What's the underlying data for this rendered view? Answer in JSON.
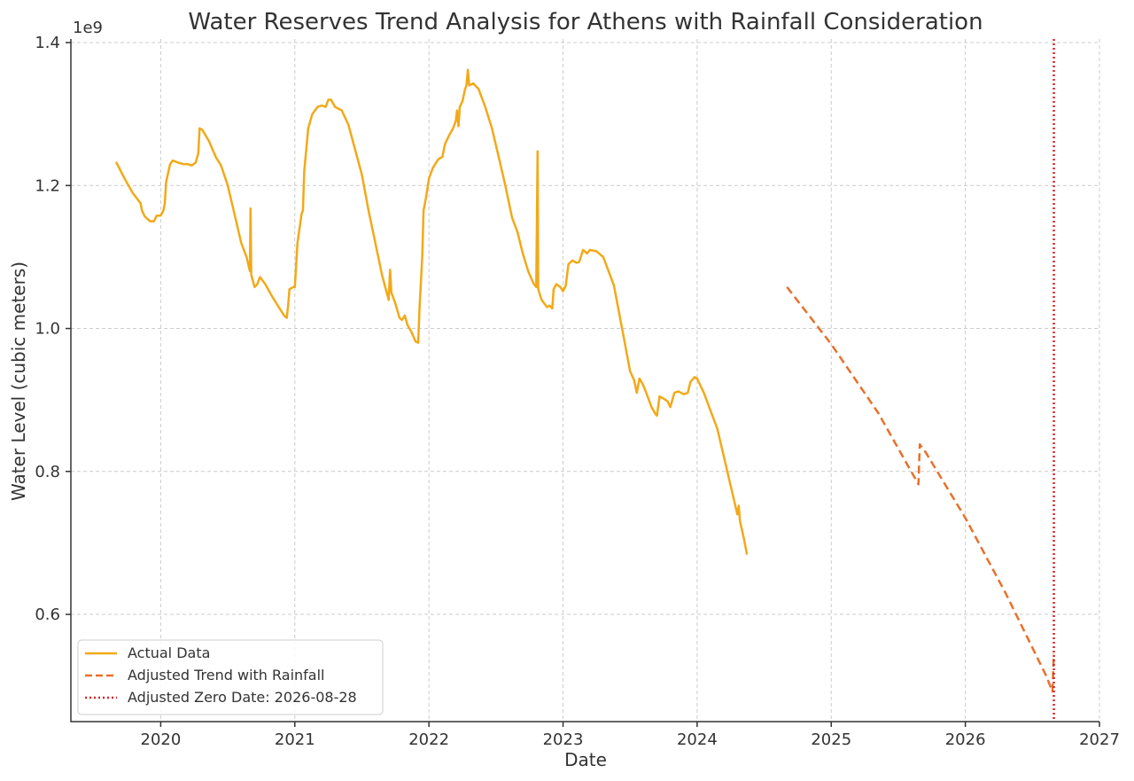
{
  "chart_data": {
    "type": "line",
    "title": "Water Reserves Trend Analysis for Athens with Rainfall Consideration",
    "xlabel": "Date",
    "ylabel": "Water Level (cubic meters)",
    "y_offset_label": "1e9",
    "xlim": [
      2019.33,
      2027.0
    ],
    "ylim": [
      0.45,
      1.405
    ],
    "x_ticks": [
      2020,
      2021,
      2022,
      2023,
      2024,
      2025,
      2026,
      2027
    ],
    "x_tick_labels": [
      "2020",
      "2021",
      "2022",
      "2023",
      "2024",
      "2025",
      "2026",
      "2027"
    ],
    "y_ticks": [
      0.6,
      0.8,
      1.0,
      1.2,
      1.4
    ],
    "y_tick_labels": [
      "0.6",
      "0.8",
      "1.0",
      "1.2",
      "1.4"
    ],
    "grid": true,
    "legend_position": "lower-left",
    "series": [
      {
        "name": "Actual Data",
        "style": "solid",
        "color": "#f2a918",
        "points": [
          [
            2019.67,
            1.232
          ],
          [
            2019.73,
            1.21
          ],
          [
            2019.79,
            1.19
          ],
          [
            2019.83,
            1.18
          ],
          [
            2019.85,
            1.175
          ],
          [
            2019.86,
            1.165
          ],
          [
            2019.88,
            1.157
          ],
          [
            2019.92,
            1.15
          ],
          [
            2019.95,
            1.15
          ],
          [
            2019.97,
            1.158
          ],
          [
            2020.0,
            1.158
          ],
          [
            2020.02,
            1.165
          ],
          [
            2020.03,
            1.175
          ],
          [
            2020.04,
            1.205
          ],
          [
            2020.07,
            1.23
          ],
          [
            2020.09,
            1.235
          ],
          [
            2020.13,
            1.232
          ],
          [
            2020.17,
            1.23
          ],
          [
            2020.2,
            1.23
          ],
          [
            2020.23,
            1.228
          ],
          [
            2020.26,
            1.232
          ],
          [
            2020.28,
            1.245
          ],
          [
            2020.29,
            1.28
          ],
          [
            2020.31,
            1.278
          ],
          [
            2020.36,
            1.262
          ],
          [
            2020.41,
            1.24
          ],
          [
            2020.45,
            1.228
          ],
          [
            2020.5,
            1.2
          ],
          [
            2020.55,
            1.16
          ],
          [
            2020.6,
            1.12
          ],
          [
            2020.64,
            1.1
          ],
          [
            2020.665,
            1.08
          ],
          [
            2020.67,
            1.168
          ],
          [
            2020.675,
            1.075
          ],
          [
            2020.7,
            1.058
          ],
          [
            2020.72,
            1.062
          ],
          [
            2020.74,
            1.072
          ],
          [
            2020.78,
            1.062
          ],
          [
            2020.83,
            1.045
          ],
          [
            2020.88,
            1.03
          ],
          [
            2020.92,
            1.018
          ],
          [
            2020.94,
            1.015
          ],
          [
            2020.95,
            1.032
          ],
          [
            2020.96,
            1.055
          ],
          [
            2020.99,
            1.058
          ],
          [
            2021.0,
            1.058
          ],
          [
            2021.02,
            1.12
          ],
          [
            2021.05,
            1.16
          ],
          [
            2021.06,
            1.165
          ],
          [
            2021.07,
            1.22
          ],
          [
            2021.1,
            1.28
          ],
          [
            2021.13,
            1.3
          ],
          [
            2021.17,
            1.31
          ],
          [
            2021.2,
            1.312
          ],
          [
            2021.23,
            1.31
          ],
          [
            2021.25,
            1.32
          ],
          [
            2021.27,
            1.32
          ],
          [
            2021.3,
            1.31
          ],
          [
            2021.35,
            1.305
          ],
          [
            2021.4,
            1.285
          ],
          [
            2021.45,
            1.25
          ],
          [
            2021.5,
            1.215
          ],
          [
            2021.55,
            1.165
          ],
          [
            2021.6,
            1.12
          ],
          [
            2021.65,
            1.075
          ],
          [
            2021.7,
            1.04
          ],
          [
            2021.71,
            1.082
          ],
          [
            2021.72,
            1.05
          ],
          [
            2021.75,
            1.035
          ],
          [
            2021.78,
            1.015
          ],
          [
            2021.8,
            1.012
          ],
          [
            2021.82,
            1.018
          ],
          [
            2021.84,
            1.005
          ],
          [
            2021.87,
            0.995
          ],
          [
            2021.9,
            0.982
          ],
          [
            2021.92,
            0.98
          ],
          [
            2021.93,
            1.03
          ],
          [
            2021.95,
            1.1
          ],
          [
            2021.96,
            1.165
          ],
          [
            2021.98,
            1.185
          ],
          [
            2022.0,
            1.21
          ],
          [
            2022.03,
            1.225
          ],
          [
            2022.07,
            1.237
          ],
          [
            2022.1,
            1.24
          ],
          [
            2022.12,
            1.258
          ],
          [
            2022.15,
            1.27
          ],
          [
            2022.18,
            1.28
          ],
          [
            2022.2,
            1.29
          ],
          [
            2022.21,
            1.305
          ],
          [
            2022.22,
            1.283
          ],
          [
            2022.23,
            1.31
          ],
          [
            2022.25,
            1.318
          ],
          [
            2022.27,
            1.335
          ],
          [
            2022.28,
            1.34
          ],
          [
            2022.29,
            1.362
          ],
          [
            2022.3,
            1.34
          ],
          [
            2022.33,
            1.343
          ],
          [
            2022.37,
            1.335
          ],
          [
            2022.42,
            1.31
          ],
          [
            2022.47,
            1.28
          ],
          [
            2022.52,
            1.24
          ],
          [
            2022.57,
            1.2
          ],
          [
            2022.62,
            1.155
          ],
          [
            2022.66,
            1.135
          ],
          [
            2022.7,
            1.105
          ],
          [
            2022.74,
            1.08
          ],
          [
            2022.78,
            1.063
          ],
          [
            2022.8,
            1.058
          ],
          [
            2022.81,
            1.248
          ],
          [
            2022.815,
            1.055
          ],
          [
            2022.84,
            1.04
          ],
          [
            2022.88,
            1.03
          ],
          [
            2022.9,
            1.032
          ],
          [
            2022.92,
            1.028
          ],
          [
            2022.93,
            1.055
          ],
          [
            2022.95,
            1.062
          ],
          [
            2022.98,
            1.058
          ],
          [
            2023.0,
            1.052
          ],
          [
            2023.02,
            1.06
          ],
          [
            2023.04,
            1.09
          ],
          [
            2023.07,
            1.095
          ],
          [
            2023.1,
            1.092
          ],
          [
            2023.12,
            1.093
          ],
          [
            2023.15,
            1.11
          ],
          [
            2023.18,
            1.105
          ],
          [
            2023.2,
            1.11
          ],
          [
            2023.25,
            1.108
          ],
          [
            2023.3,
            1.1
          ],
          [
            2023.35,
            1.075
          ],
          [
            2023.38,
            1.06
          ],
          [
            2023.42,
            1.02
          ],
          [
            2023.46,
            0.98
          ],
          [
            2023.5,
            0.94
          ],
          [
            2023.53,
            0.928
          ],
          [
            2023.55,
            0.91
          ],
          [
            2023.57,
            0.93
          ],
          [
            2023.6,
            0.92
          ],
          [
            2023.63,
            0.905
          ],
          [
            2023.66,
            0.89
          ],
          [
            2023.69,
            0.88
          ],
          [
            2023.7,
            0.878
          ],
          [
            2023.72,
            0.905
          ],
          [
            2023.75,
            0.902
          ],
          [
            2023.78,
            0.898
          ],
          [
            2023.8,
            0.89
          ],
          [
            2023.83,
            0.91
          ],
          [
            2023.86,
            0.912
          ],
          [
            2023.9,
            0.908
          ],
          [
            2023.93,
            0.91
          ],
          [
            2023.95,
            0.925
          ],
          [
            2023.98,
            0.932
          ],
          [
            2024.0,
            0.93
          ],
          [
            2024.05,
            0.91
          ],
          [
            2024.1,
            0.885
          ],
          [
            2024.15,
            0.86
          ],
          [
            2024.2,
            0.82
          ],
          [
            2024.25,
            0.78
          ],
          [
            2024.3,
            0.74
          ],
          [
            2024.31,
            0.752
          ],
          [
            2024.32,
            0.73
          ],
          [
            2024.35,
            0.705
          ],
          [
            2024.37,
            0.685
          ]
        ]
      },
      {
        "name": "Adjusted Trend with Rainfall",
        "style": "dashed",
        "color": "#e8702a",
        "points": [
          [
            2024.67,
            1.058
          ],
          [
            2025.0,
            0.978
          ],
          [
            2025.35,
            0.882
          ],
          [
            2025.65,
            0.782
          ],
          [
            2025.66,
            0.838
          ],
          [
            2025.7,
            0.828
          ],
          [
            2026.0,
            0.735
          ],
          [
            2026.3,
            0.63
          ],
          [
            2026.6,
            0.515
          ],
          [
            2026.65,
            0.492
          ],
          [
            2026.66,
            0.545
          ]
        ]
      },
      {
        "name": "Adjusted Zero Date: 2026-08-28",
        "style": "dotted",
        "color": "#d62728",
        "x_vertical": 2026.66
      }
    ]
  }
}
